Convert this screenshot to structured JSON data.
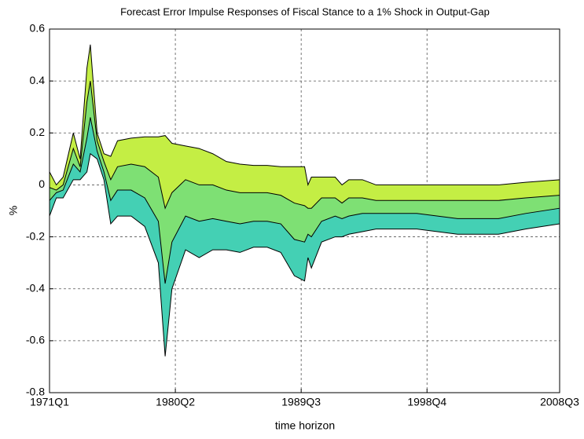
{
  "chart_data": {
    "type": "surface-band",
    "title": "Forecast Error Impulse Responses of Fiscal Stance to a 1% Shock in Output-Gap",
    "xlabel": "time horizon",
    "ylabel": "%",
    "x": [
      1971.0,
      1971.5,
      1972.0,
      1972.75,
      1973.25,
      1973.75,
      1974.0,
      1974.5,
      1975.0,
      1975.5,
      1976.0,
      1977.0,
      1978.0,
      1979.0,
      1979.5,
      1980.0,
      1981.0,
      1982.0,
      1983.0,
      1984.0,
      1985.0,
      1986.0,
      1987.0,
      1988.0,
      1989.0,
      1989.75,
      1990.0,
      1990.25,
      1991.0,
      1992.0,
      1992.5,
      1993.0,
      1994.0,
      1995.0,
      1998.0,
      2001.0,
      2004.0,
      2006.0,
      2008.5
    ],
    "series": [
      {
        "color": "#c4ee44",
        "values": [
          0.05,
          0.0,
          0.03,
          0.2,
          0.1,
          0.45,
          0.54,
          0.2,
          0.12,
          0.11,
          0.17,
          0.18,
          0.185,
          0.185,
          0.19,
          0.16,
          0.15,
          0.14,
          0.12,
          0.09,
          0.08,
          0.075,
          0.075,
          0.07,
          0.07,
          0.07,
          0.0,
          0.03,
          0.03,
          0.03,
          0.0,
          0.02,
          0.02,
          0.0,
          0.0,
          0.0,
          0.0,
          0.01,
          0.02
        ]
      },
      {
        "color": "#7ee074",
        "values": [
          -0.01,
          -0.02,
          0.0,
          0.14,
          0.07,
          0.32,
          0.4,
          0.17,
          0.09,
          0.02,
          0.07,
          0.08,
          0.07,
          0.03,
          -0.09,
          -0.03,
          0.02,
          0.0,
          0.0,
          -0.02,
          -0.03,
          -0.03,
          -0.03,
          -0.04,
          -0.07,
          -0.08,
          -0.09,
          -0.09,
          -0.05,
          -0.05,
          -0.07,
          -0.05,
          -0.05,
          -0.06,
          -0.06,
          -0.06,
          -0.06,
          -0.05,
          -0.04
        ]
      },
      {
        "color": "#44d0b4",
        "values": [
          -0.06,
          -0.03,
          -0.02,
          0.08,
          0.05,
          0.18,
          0.26,
          0.13,
          0.05,
          -0.06,
          -0.02,
          -0.02,
          -0.05,
          -0.14,
          -0.38,
          -0.22,
          -0.12,
          -0.14,
          -0.13,
          -0.14,
          -0.15,
          -0.14,
          -0.14,
          -0.15,
          -0.21,
          -0.22,
          -0.19,
          -0.2,
          -0.14,
          -0.12,
          -0.13,
          -0.12,
          -0.11,
          -0.11,
          -0.11,
          -0.13,
          -0.13,
          -0.11,
          -0.09
        ]
      },
      {
        "color": "#2a8ed4",
        "values": [
          -0.12,
          -0.05,
          -0.05,
          0.02,
          0.02,
          0.05,
          0.12,
          0.1,
          0.02,
          -0.15,
          -0.12,
          -0.12,
          -0.16,
          -0.3,
          -0.66,
          -0.4,
          -0.25,
          -0.28,
          -0.25,
          -0.25,
          -0.26,
          -0.24,
          -0.24,
          -0.26,
          -0.35,
          -0.37,
          -0.28,
          -0.32,
          -0.22,
          -0.2,
          -0.2,
          -0.19,
          -0.18,
          -0.17,
          -0.17,
          -0.19,
          -0.19,
          -0.17,
          -0.15
        ]
      }
    ],
    "xlim": [
      1971.0,
      2008.5
    ],
    "xticks": [
      {
        "value": 1971.0,
        "label": "1971Q1"
      },
      {
        "value": 1980.25,
        "label": "1980Q2"
      },
      {
        "value": 1989.5,
        "label": "1989Q3"
      },
      {
        "value": 1998.75,
        "label": "1998Q4"
      },
      {
        "value": 2008.5,
        "label": "2008Q3"
      }
    ],
    "ylim": [
      -0.8,
      0.6
    ],
    "yticks": [
      -0.8,
      -0.6,
      -0.4,
      -0.2,
      0,
      0.2,
      0.4,
      0.6
    ],
    "grid": true
  }
}
